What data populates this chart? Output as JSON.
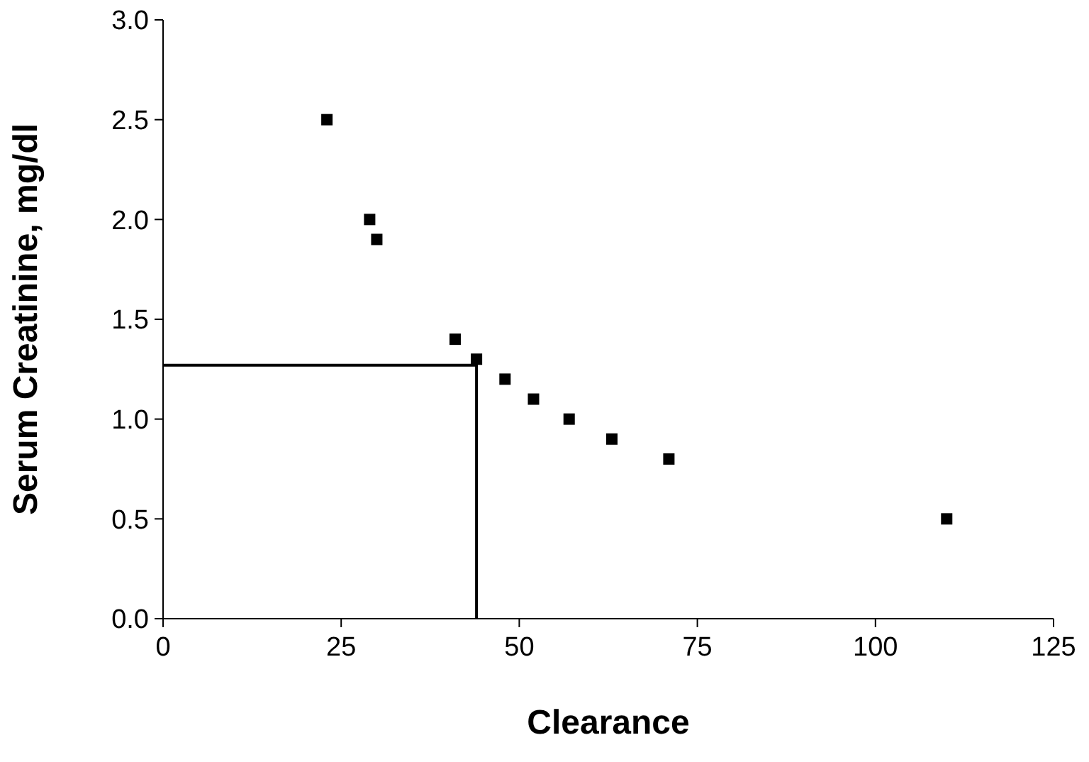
{
  "chart_data": {
    "type": "scatter",
    "xlabel": "Clearance",
    "ylabel": "Serum Creatinine, mg/dl",
    "xlim": [
      0,
      125
    ],
    "xticks": [
      0,
      25,
      50,
      75,
      100,
      125
    ],
    "ylim": [
      0,
      3
    ],
    "yticks": [
      {
        "value": 0,
        "label": "0.0"
      },
      {
        "value": 0.5,
        "label": "0.5"
      },
      {
        "value": 1,
        "label": "1.0"
      },
      {
        "value": 1.5,
        "label": "1.5"
      },
      {
        "value": 2,
        "label": "2.0"
      },
      {
        "value": 2.5,
        "label": "2.5"
      },
      {
        "value": 3,
        "label": "3.0"
      }
    ],
    "grid": false,
    "marker": "square",
    "series": [
      {
        "color": "#000000",
        "x": [
          23,
          29,
          30,
          41,
          44,
          48,
          52,
          57,
          63,
          71,
          110
        ],
        "values": [
          2.5,
          2.0,
          1.9,
          1.4,
          1.3,
          1.2,
          1.1,
          1.0,
          0.9,
          0.8,
          0.5
        ]
      },
      {
        "type": "line",
        "color": "#000000",
        "marker": "none",
        "x": [
          0,
          44,
          44
        ],
        "values": [
          1.27,
          1.27,
          0
        ]
      }
    ]
  }
}
